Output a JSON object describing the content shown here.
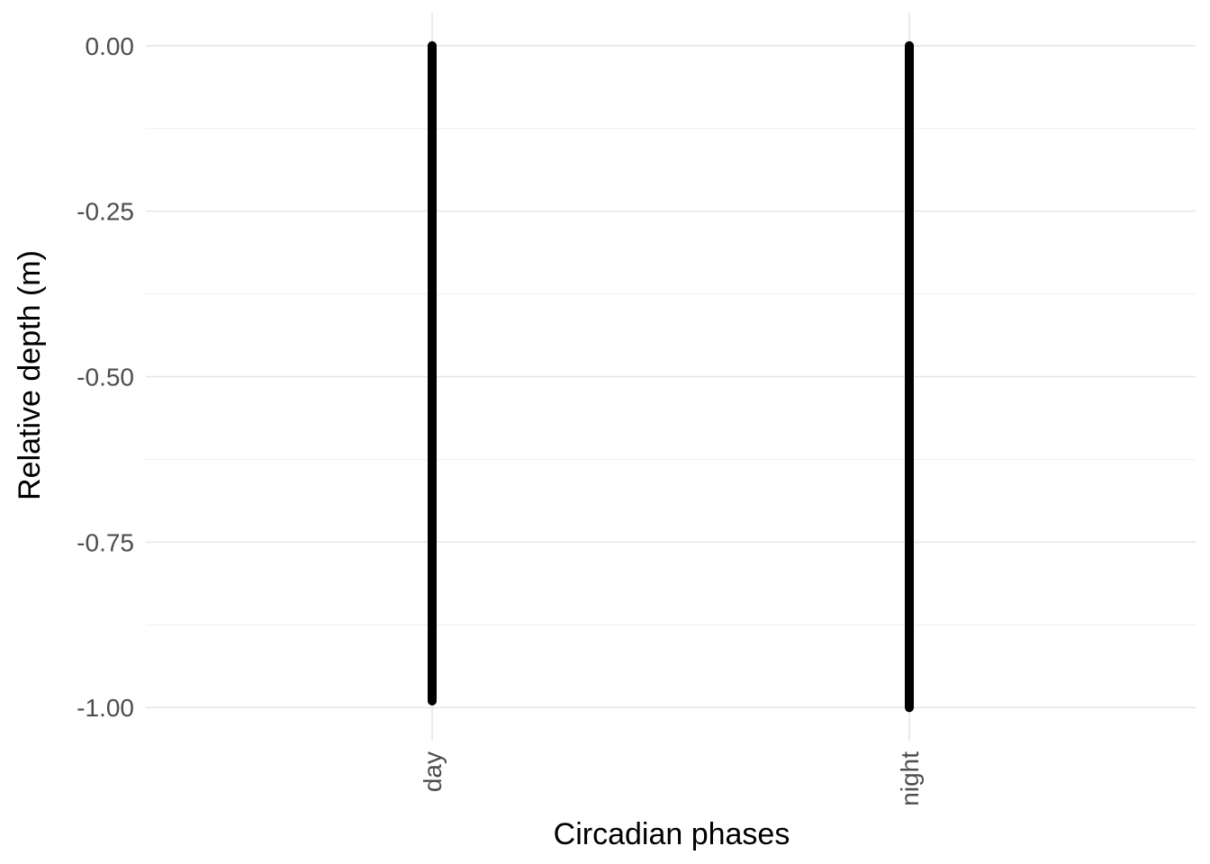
{
  "chart_data": {
    "type": "scatter",
    "title": "",
    "xlabel": "Circadian phases",
    "ylabel": "Relative depth (m)",
    "categories": [
      "day",
      "night"
    ],
    "series": [
      {
        "category": "day",
        "y_range": [
          -0.99,
          0.0
        ]
      },
      {
        "category": "night",
        "y_range": [
          -1.0,
          0.0
        ]
      }
    ],
    "ylim": [
      -1.05,
      0.05
    ],
    "y_ticks": [
      0.0,
      -0.25,
      -0.5,
      -0.75,
      -1.0
    ],
    "y_tick_labels": [
      "0.00",
      "-0.25",
      "-0.50",
      "-0.75",
      "-1.00"
    ],
    "x_tick_rotation_deg": -90,
    "grid": true,
    "legend": "none",
    "point_color": "#000000",
    "grid_color": "#e6e6e6"
  }
}
